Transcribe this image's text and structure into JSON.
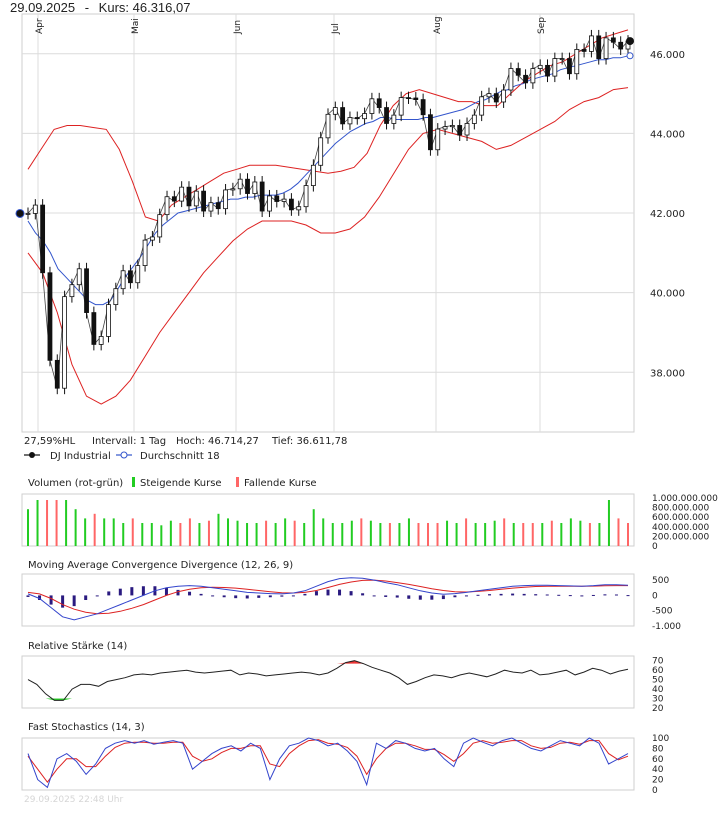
{
  "header": {
    "date": "29.09.2025",
    "sep": "-",
    "kurs_label": "Kurs: 46.316,07"
  },
  "info": {
    "hl": "27,59%HL",
    "interval": "Intervall: 1 Tag",
    "high": "Hoch:  46.714,27",
    "low": "Tief:  36.611,78"
  },
  "legend": {
    "series1": "DJ Industrial",
    "series2": "Durchschnitt 18"
  },
  "months": [
    "Apr",
    "Mai",
    "Jun",
    "Jul",
    "Aug",
    "Sep"
  ],
  "price_ticks": [
    "46.000",
    "44.000",
    "42.000",
    "40.000",
    "38.000"
  ],
  "volume": {
    "title": "Volumen (rot-grün)",
    "rising": "Steigende Kurse",
    "falling": "Fallende Kurse",
    "ticks": [
      "1.000.000.000",
      "800.000.000",
      "600.000.000",
      "400.000.000",
      "200.000.000",
      "0"
    ]
  },
  "macd": {
    "title": "Moving Average Convergence Divergence (12, 26, 9)",
    "ticks": [
      "500",
      "0",
      "-500",
      "-1.000"
    ]
  },
  "rsi": {
    "title": "Relative Stärke (14)",
    "ticks": [
      "70",
      "60",
      "50",
      "40",
      "30",
      "20"
    ]
  },
  "stoch": {
    "title": "Fast Stochastics (14, 3)",
    "ticks": [
      "100",
      "80",
      "60",
      "40",
      "20",
      "0"
    ]
  },
  "watermark": "29.09.2025 22:48 Uhr",
  "colors": {
    "up": "#22cc22",
    "down": "#ff6666",
    "band": "#dd2222",
    "avg": "#3355cc",
    "candle": "#111111",
    "macd_bar": "#2a1a80"
  },
  "chart_data": [
    {
      "type": "candlestick",
      "title": "DJ Industrial",
      "x_labels": [
        "Apr",
        "Mai",
        "Jun",
        "Jul",
        "Aug",
        "Sep"
      ],
      "ylim": [
        36500,
        47000
      ],
      "series": [
        {
          "name": "DJ Industrial",
          "close": [
            41990,
            42200,
            40500,
            38300,
            37600,
            39900,
            40200,
            40600,
            39500,
            38700,
            38900,
            39700,
            40100,
            40550,
            40250,
            40680,
            41320,
            41400,
            41960,
            42410,
            42300,
            42650,
            42180,
            42550,
            42050,
            42260,
            42110,
            42580,
            42610,
            42850,
            42490,
            42780,
            42050,
            42430,
            42290,
            42350,
            42080,
            42160,
            42690,
            43200,
            43890,
            44480,
            44650,
            44240,
            44400,
            44370,
            44500,
            44870,
            44650,
            44250,
            44460,
            44900,
            44890,
            44850,
            44470,
            43590,
            44110,
            44170,
            44200,
            43960,
            44250,
            44460,
            44920,
            45000,
            44790,
            45090,
            45630,
            45460,
            45270,
            45630,
            45710,
            45440,
            45880,
            45880,
            45500,
            46110,
            46060,
            46450,
            45880,
            46400,
            46290,
            46120,
            46320
          ]
        },
        {
          "name": "Durchschnitt 18",
          "values": [
            41800,
            41500,
            41300,
            41000,
            40600,
            40400,
            40200,
            40000,
            39800,
            39700,
            39700,
            39800,
            40100,
            40400,
            40650,
            40900,
            41200,
            41500,
            41700,
            41850,
            42000,
            42050,
            42100,
            42150,
            42200,
            42250,
            42300,
            42350,
            42350,
            42400,
            42400,
            42450,
            42450,
            42450,
            42500,
            42600,
            42750,
            42950,
            43150,
            43350,
            43550,
            43750,
            43900,
            44050,
            44150,
            44250,
            44300,
            44400,
            44400,
            44350,
            44350,
            44350,
            44350,
            44400,
            44400,
            44450,
            44500,
            44550,
            44600,
            44700,
            44800,
            44850,
            44950,
            45050,
            45100,
            45200,
            45250,
            45350,
            45400,
            45450,
            45500,
            45600,
            45650,
            45700,
            45750,
            45800,
            45850,
            45850,
            45900,
            45900,
            45950
          ]
        },
        {
          "name": "Bollinger oben",
          "values": [
            43100,
            43600,
            44100,
            44200,
            44200,
            44150,
            44100,
            43600,
            42800,
            41900,
            41800,
            42200,
            42400,
            42600,
            42800,
            43000,
            43100,
            43200,
            43200,
            43200,
            43150,
            43100,
            43050,
            43000,
            43050,
            43150,
            43500,
            44200,
            44700,
            45000,
            45100,
            45000,
            44900,
            44800,
            44800,
            44700,
            44700,
            45000,
            45300,
            45500,
            45700,
            45800,
            46000,
            46200,
            46400,
            46500,
            46600
          ]
        },
        {
          "name": "Bollinger unten",
          "values": [
            41000,
            40500,
            39500,
            38200,
            37400,
            37200,
            37400,
            37800,
            38400,
            39000,
            39500,
            40000,
            40500,
            40900,
            41300,
            41600,
            41800,
            41800,
            41800,
            41700,
            41500,
            41500,
            41600,
            41900,
            42400,
            43000,
            43600,
            44000,
            44100,
            44000,
            43900,
            43800,
            43600,
            43700,
            43900,
            44100,
            44300,
            44600,
            44800,
            44900,
            45100,
            45150
          ]
        }
      ]
    },
    {
      "type": "bar",
      "title": "Volumen (rot-grün)",
      "ylim": [
        0,
        1000000000
      ],
      "series": [
        {
          "name": "Volumen",
          "values": [
            800000000,
            1000000000,
            1000000000,
            1000000000,
            1000000000,
            800000000,
            600000000,
            700000000,
            600000000,
            600000000,
            500000000,
            600000000,
            500000000,
            500000000,
            450000000,
            550000000,
            500000000,
            600000000,
            500000000,
            550000000,
            700000000,
            600000000,
            550000000,
            500000000,
            500000000,
            550000000,
            500000000,
            600000000,
            550000000,
            500000000,
            800000000,
            600000000,
            500000000,
            500000000,
            550000000,
            600000000,
            550000000,
            500000000,
            500000000,
            500000000,
            600000000,
            500000000,
            500000000,
            500000000,
            550000000,
            500000000,
            600000000,
            500000000,
            500000000,
            550000000,
            600000000,
            500000000,
            500000000,
            500000000,
            500000000,
            550000000,
            500000000,
            600000000,
            550000000,
            500000000,
            500000000,
            1000000000,
            600000000,
            500000000
          ]
        }
      ]
    },
    {
      "type": "line",
      "title": "Moving Average Convergence Divergence (12, 26, 9)",
      "ylim": [
        -1000,
        700
      ],
      "series": [
        {
          "name": "MACD",
          "values": [
            50,
            -100,
            -400,
            -700,
            -800,
            -700,
            -600,
            -450,
            -300,
            -150,
            0,
            150,
            250,
            300,
            320,
            300,
            250,
            200,
            150,
            100,
            80,
            60,
            50,
            80,
            150,
            300,
            450,
            550,
            580,
            560,
            500,
            420,
            350,
            250,
            150,
            80,
            40,
            60,
            100,
            150,
            200,
            250,
            300,
            320,
            330,
            330,
            320,
            310,
            300,
            320,
            350,
            350,
            330
          ]
        },
        {
          "name": "Signal",
          "values": [
            100,
            50,
            -100,
            -300,
            -450,
            -550,
            -600,
            -580,
            -520,
            -420,
            -300,
            -150,
            0,
            120,
            200,
            250,
            270,
            260,
            240,
            200,
            160,
            120,
            90,
            80,
            100,
            160,
            260,
            360,
            440,
            490,
            500,
            470,
            420,
            360,
            290,
            220,
            160,
            120,
            110,
            130,
            160,
            200,
            240,
            270,
            290,
            300,
            300,
            300,
            300,
            305,
            315,
            320,
            320
          ]
        }
      ]
    },
    {
      "type": "line",
      "title": "Relative Stärke (14)",
      "ylim": [
        20,
        75
      ],
      "series": [
        {
          "name": "RSI",
          "values": [
            50,
            45,
            35,
            28,
            28,
            40,
            45,
            45,
            43,
            48,
            50,
            52,
            55,
            56,
            55,
            57,
            58,
            59,
            60,
            58,
            57,
            58,
            59,
            60,
            55,
            57,
            56,
            54,
            55,
            56,
            57,
            58,
            57,
            55,
            57,
            62,
            68,
            70,
            67,
            63,
            60,
            57,
            52,
            45,
            48,
            52,
            55,
            54,
            52,
            55,
            57,
            55,
            53,
            56,
            60,
            58,
            57,
            60,
            55,
            56,
            58,
            60,
            55,
            58,
            62,
            60,
            56,
            59,
            61
          ]
        }
      ]
    },
    {
      "type": "line",
      "title": "Fast Stochastics (14, 3)",
      "ylim": [
        0,
        100
      ],
      "series": [
        {
          "name": "%K",
          "values": [
            70,
            20,
            5,
            60,
            70,
            55,
            30,
            50,
            80,
            90,
            95,
            90,
            95,
            88,
            92,
            95,
            90,
            40,
            55,
            70,
            80,
            85,
            75,
            90,
            80,
            20,
            60,
            85,
            90,
            100,
            95,
            85,
            90,
            75,
            55,
            10,
            90,
            80,
            95,
            90,
            80,
            75,
            80,
            60,
            45,
            90,
            100,
            92,
            85,
            95,
            100,
            90,
            80,
            75,
            85,
            95,
            90,
            85,
            100,
            90,
            50,
            60,
            70
          ]
        },
        {
          "name": "%D",
          "values": [
            65,
            40,
            15,
            40,
            60,
            60,
            45,
            45,
            65,
            82,
            90,
            92,
            92,
            90,
            90,
            92,
            92,
            65,
            55,
            60,
            72,
            80,
            80,
            85,
            85,
            50,
            45,
            70,
            85,
            95,
            97,
            90,
            88,
            82,
            65,
            30,
            60,
            80,
            90,
            90,
            85,
            78,
            78,
            68,
            55,
            70,
            90,
            95,
            90,
            92,
            95,
            95,
            85,
            80,
            82,
            90,
            92,
            88,
            95,
            95,
            70,
            58,
            65
          ]
        }
      ]
    }
  ]
}
